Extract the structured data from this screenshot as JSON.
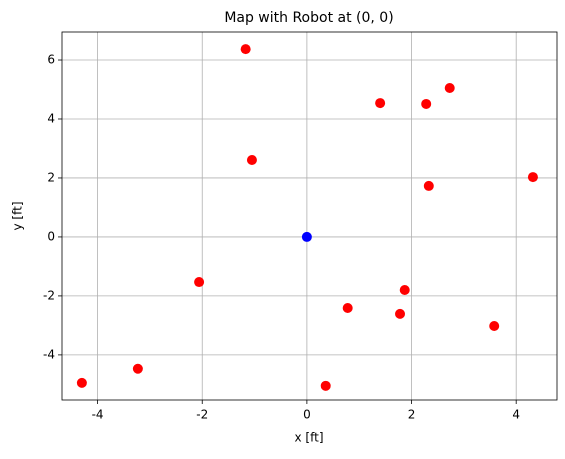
{
  "chart_data": {
    "type": "scatter",
    "title": "Map with Robot at (0, 0)",
    "xlabel": "x [ft]",
    "ylabel": "y [ft]",
    "series": [
      {
        "color": "#ff0000",
        "x": [
          -1.17,
          1.4,
          2.28,
          2.73,
          -1.05,
          2.33,
          4.32,
          -2.06,
          0.78,
          1.87,
          1.78,
          3.58,
          -4.3,
          -3.23,
          0.36
        ],
        "y": [
          6.37,
          4.54,
          4.51,
          5.05,
          2.61,
          1.73,
          2.03,
          -1.53,
          -2.41,
          -1.8,
          -2.61,
          -3.02,
          -4.95,
          -4.47,
          -5.05
        ]
      },
      {
        "color": "#0000ff",
        "x": [
          0
        ],
        "y": [
          0
        ]
      }
    ],
    "xlim": [
      -4.68,
      4.78
    ],
    "ylim": [
      -5.53,
      6.95
    ],
    "xticks": [
      -4,
      -2,
      0,
      2,
      4
    ],
    "yticks": [
      -4,
      -2,
      0,
      2,
      4,
      6
    ],
    "grid": true
  }
}
